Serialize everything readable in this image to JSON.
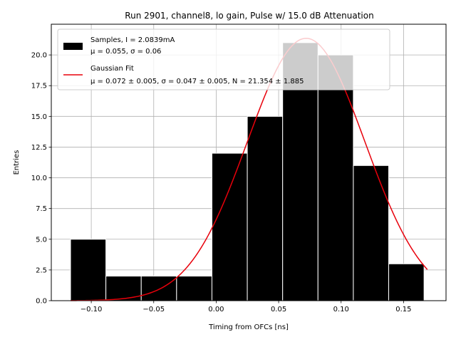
{
  "chart_data": {
    "type": "bar",
    "title": "Run 2901, channel8, lo gain, Pulse w/ 15.0 dB Attenuation",
    "xlabel": "Timing from OFCs [ns]",
    "ylabel": "Entries",
    "xlim": [
      -0.132,
      0.184
    ],
    "ylim": [
      0,
      22.5
    ],
    "grid": true,
    "legend_position": "top-left",
    "xticks": [
      -0.1,
      -0.05,
      0.0,
      0.05,
      0.1,
      0.15
    ],
    "xtick_labels": [
      "−0.10",
      "−0.05",
      "0.00",
      "0.05",
      "0.10",
      "0.15"
    ],
    "yticks": [
      0,
      2.5,
      5,
      7.5,
      10,
      12.5,
      15,
      17.5,
      20
    ],
    "ytick_labels": [
      "0.0",
      "2.5",
      "5.0",
      "7.5",
      "10.0",
      "12.5",
      "15.0",
      "17.5",
      "20.0"
    ],
    "histogram": {
      "name": "Samples, I = 2.0839mA",
      "stats": "μ = 0.055, σ = 0.06",
      "bin_edges": [
        -0.1166,
        -0.0883,
        -0.06,
        -0.0317,
        -0.0034,
        0.0249,
        0.0532,
        0.0815,
        0.1098,
        0.1381,
        0.1664
      ],
      "counts": [
        5,
        2,
        2,
        2,
        12,
        15,
        21,
        20,
        11,
        3
      ],
      "color": "#000000",
      "edge_color": "#ffffff"
    },
    "fit": {
      "name": "Gaussian Fit",
      "params": "μ = 0.072 ± 0.005, σ = 0.047 ± 0.005, N = 21.354 ± 1.885",
      "mu": 0.072,
      "sigma": 0.047,
      "N": 21.354,
      "x_range": [
        -0.1166,
        0.169
      ],
      "color": "#e8000b"
    }
  }
}
